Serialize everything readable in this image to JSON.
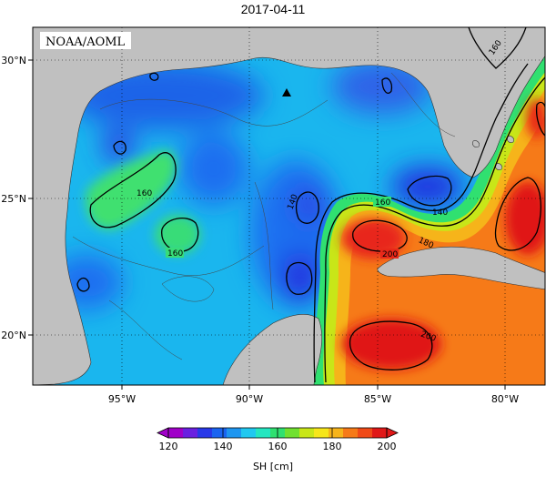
{
  "title": "2017-04-11",
  "watermark": "NOAA/AOML",
  "axes": {
    "lon_range": [
      -98,
      -78
    ],
    "lat_range": [
      18,
      31
    ],
    "x_ticks": [
      {
        "value": -95,
        "label": "95°W"
      },
      {
        "value": -90,
        "label": "90°W"
      },
      {
        "value": -85,
        "label": "85°W"
      },
      {
        "value": -80,
        "label": "80°W"
      }
    ],
    "y_ticks": [
      {
        "value": 20,
        "label": "20°N"
      },
      {
        "value": 25,
        "label": "25°N"
      },
      {
        "value": 30,
        "label": "30°N"
      }
    ],
    "grid": "dotted"
  },
  "contour_labels": [
    {
      "text": "160",
      "lon": -94.3,
      "lat": 25.1
    },
    {
      "text": "160",
      "lon": -92.1,
      "lat": 22.9
    },
    {
      "text": "140",
      "lon": -88.9,
      "lat": 24.7
    },
    {
      "text": "160",
      "lon": -85.3,
      "lat": 25.0
    },
    {
      "text": "140",
      "lon": -82.6,
      "lat": 24.6
    },
    {
      "text": "180",
      "lon": -82.9,
      "lat": 23.3
    },
    {
      "text": "200",
      "lon": -85.0,
      "lat": 22.8
    },
    {
      "text": "200",
      "lon": -83.1,
      "lat": 19.9
    },
    {
      "text": "160",
      "lon": -79.9,
      "lat": 30.5
    }
  ],
  "marker": {
    "symbol": "triangle",
    "lon": -88.2,
    "lat": 28.9
  },
  "colorbar": {
    "label": "SH [cm]",
    "ticks": [
      "120",
      "140",
      "160",
      "180",
      "200"
    ],
    "colors": [
      "#a000c8",
      "#6a20e0",
      "#2838e8",
      "#1a64f0",
      "#1e96f0",
      "#20c8f0",
      "#24e6c0",
      "#30e070",
      "#70e030",
      "#c8e618",
      "#f6e61a",
      "#f6b41a",
      "#f67a18",
      "#f04a18",
      "#e01818"
    ]
  },
  "land_color": "#c0c0c0"
}
